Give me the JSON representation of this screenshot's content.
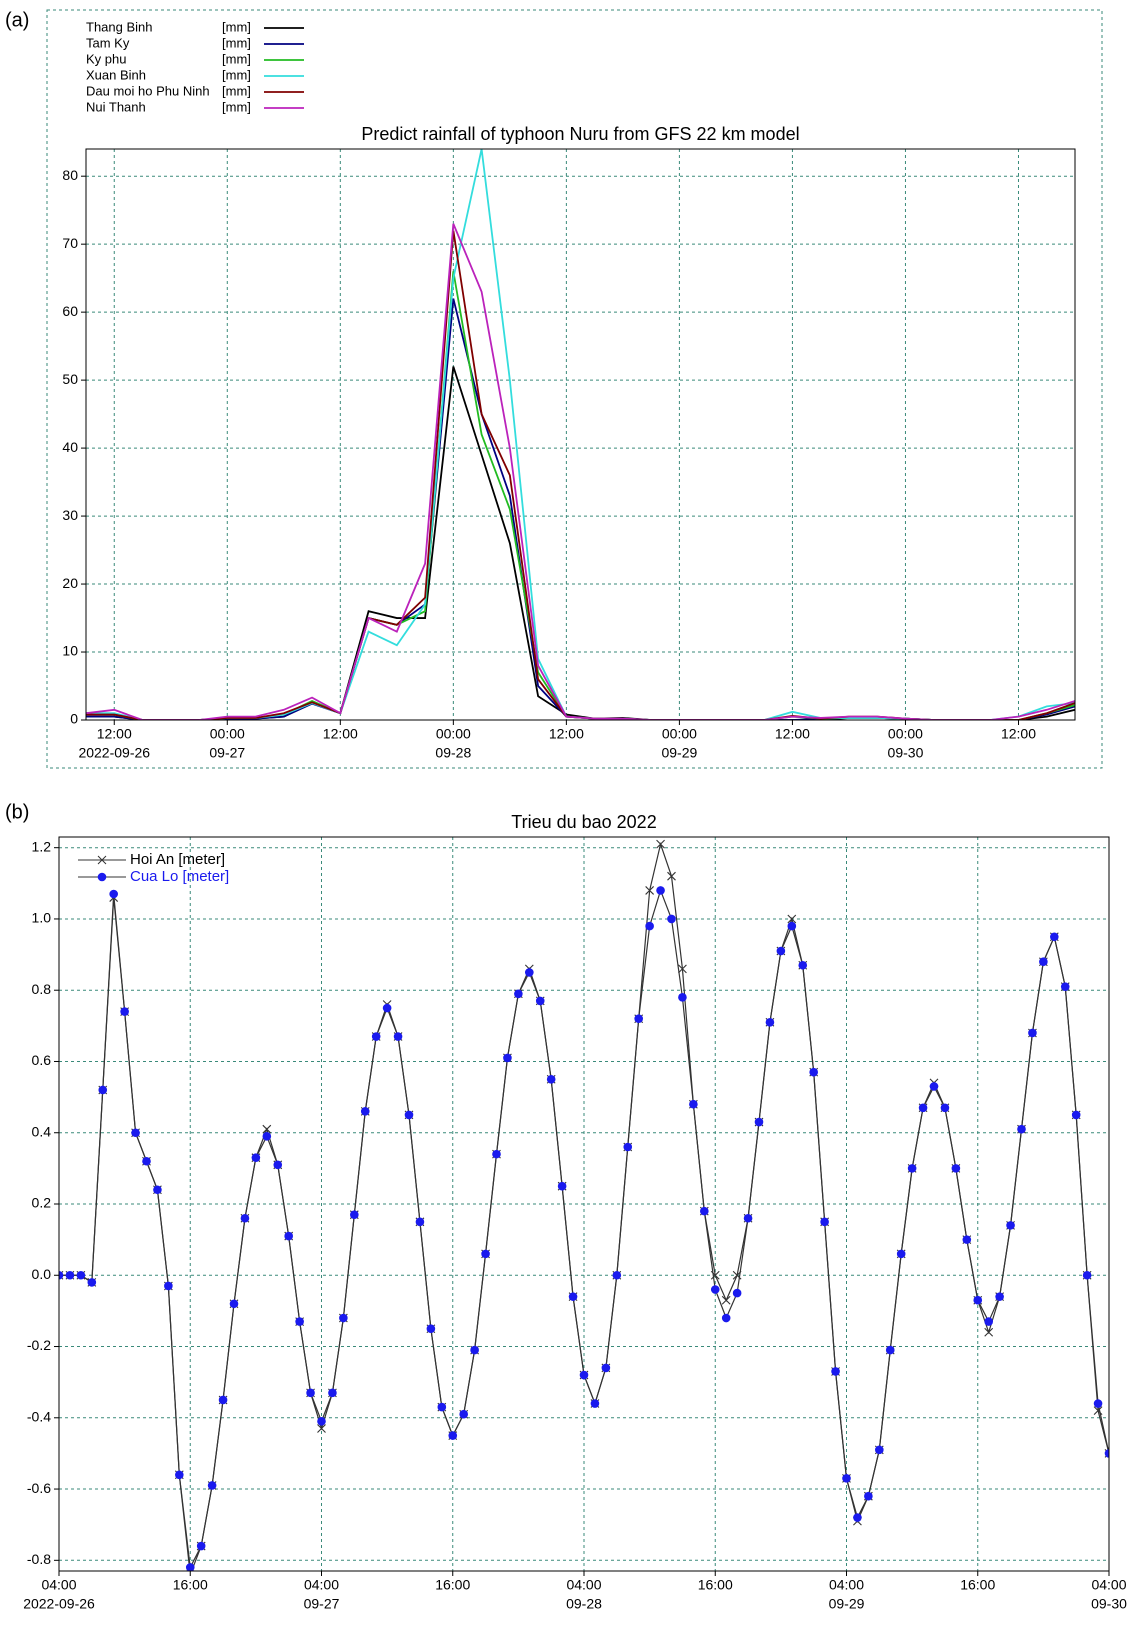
{
  "chart_data": [
    {
      "type": "line",
      "panel_label": "(a)",
      "title": "Predict rainfall of typhoon Nuru from GFS 22 km model",
      "unit": "[mm]",
      "legend": "upper left",
      "grid": true,
      "x": [
        "2022-09-26 09:00",
        "2022-09-26 12:00",
        "2022-09-26 15:00",
        "2022-09-26 18:00",
        "2022-09-26 21:00",
        "2022-09-27 00:00",
        "2022-09-27 03:00",
        "2022-09-27 06:00",
        "2022-09-27 09:00",
        "2022-09-27 12:00",
        "2022-09-27 15:00",
        "2022-09-27 18:00",
        "2022-09-27 21:00",
        "2022-09-28 00:00",
        "2022-09-28 03:00",
        "2022-09-28 06:00",
        "2022-09-28 09:00",
        "2022-09-28 12:00",
        "2022-09-28 15:00",
        "2022-09-28 18:00",
        "2022-09-28 21:00",
        "2022-09-29 00:00",
        "2022-09-29 03:00",
        "2022-09-29 06:00",
        "2022-09-29 09:00",
        "2022-09-29 12:00",
        "2022-09-29 15:00",
        "2022-09-29 18:00",
        "2022-09-29 21:00",
        "2022-09-30 00:00",
        "2022-09-30 03:00",
        "2022-09-30 06:00",
        "2022-09-30 09:00",
        "2022-09-30 12:00",
        "2022-09-30 15:00",
        "2022-09-30 18:00"
      ],
      "series": [
        {
          "name": "Thang Binh",
          "color": "#000000",
          "values": [
            0.5,
            0.5,
            0,
            0,
            0,
            0.2,
            0.2,
            0.5,
            2.5,
            1,
            16,
            15,
            15,
            52,
            39,
            26,
            3.5,
            0.8,
            0.2,
            0.3,
            0,
            0,
            0,
            0,
            0,
            0,
            0,
            0.3,
            0.3,
            0.2,
            0,
            0,
            0,
            0,
            0.5,
            1.5
          ]
        },
        {
          "name": "Tam Ky",
          "color": "#000080",
          "values": [
            0.5,
            0.5,
            0,
            0,
            0,
            0.2,
            0.2,
            0.5,
            2.4,
            1,
            15,
            14,
            17,
            62,
            45,
            33,
            5,
            0.5,
            0.2,
            0.2,
            0,
            0,
            0,
            0,
            0,
            0,
            0.2,
            0.3,
            0.3,
            0.2,
            0,
            0,
            0,
            0,
            0.8,
            2
          ]
        },
        {
          "name": "Ky phu",
          "color": "#22bb22",
          "values": [
            0.8,
            0.8,
            0,
            0,
            0,
            0.3,
            0.3,
            0.8,
            2.8,
            1,
            15,
            14,
            16,
            66,
            42,
            31,
            7,
            0.5,
            0.2,
            0.2,
            0,
            0,
            0,
            0,
            0,
            0.5,
            0.2,
            0.3,
            0.3,
            0.2,
            0,
            0,
            0,
            0,
            1,
            2.2
          ]
        },
        {
          "name": "Xuan Binh",
          "color": "#33dddd",
          "values": [
            1,
            1,
            0,
            0,
            0,
            0.3,
            0.3,
            0.8,
            2.5,
            1,
            13,
            11,
            17,
            65,
            84,
            50,
            9,
            0.5,
            0.2,
            0.2,
            0,
            0,
            0,
            0,
            0,
            1.2,
            0.3,
            0.3,
            0.3,
            0.2,
            0,
            0,
            0,
            0.5,
            2,
            2.5
          ]
        },
        {
          "name": "Dau moi ho Phu Ninh",
          "color": "#800000",
          "values": [
            0.8,
            0.8,
            0,
            0,
            0,
            0.3,
            0.3,
            1,
            2.6,
            1,
            15,
            14,
            18,
            72,
            45,
            36,
            6,
            0.5,
            0.2,
            0.2,
            0,
            0,
            0,
            0,
            0,
            0.6,
            0.2,
            0.5,
            0.5,
            0.2,
            0,
            0,
            0,
            0,
            1,
            2.5
          ]
        },
        {
          "name": "Nui Thanh",
          "color": "#bb22bb",
          "values": [
            1,
            1.5,
            0,
            0,
            0,
            0.5,
            0.5,
            1.5,
            3.3,
            1,
            15,
            13,
            23,
            73,
            63,
            40,
            8,
            0.5,
            0.2,
            0.2,
            0,
            0,
            0,
            0,
            0,
            0.5,
            0.3,
            0.5,
            0.5,
            0.2,
            0,
            0,
            0,
            0.5,
            1.5,
            2.8
          ]
        }
      ],
      "xlim": [
        "2022-09-26 09:00",
        "2022-09-30 18:00"
      ],
      "ylim": [
        0,
        84
      ],
      "xticks": [
        {
          "value": "2022-09-26 12:00",
          "label": [
            "12:00",
            "2022-09-26"
          ]
        },
        {
          "value": "2022-09-27 00:00",
          "label": [
            "00:00",
            "09-27"
          ]
        },
        {
          "value": "2022-09-27 12:00",
          "label": [
            "12:00"
          ]
        },
        {
          "value": "2022-09-28 00:00",
          "label": [
            "00:00",
            "09-28"
          ]
        },
        {
          "value": "2022-09-28 12:00",
          "label": [
            "12:00"
          ]
        },
        {
          "value": "2022-09-29 00:00",
          "label": [
            "00:00",
            "09-29"
          ]
        },
        {
          "value": "2022-09-29 12:00",
          "label": [
            "12:00"
          ]
        },
        {
          "value": "2022-09-30 00:00",
          "label": [
            "00:00",
            "09-30"
          ]
        },
        {
          "value": "2022-09-30 12:00",
          "label": [
            "12:00"
          ]
        }
      ],
      "yticks": [
        0,
        10,
        20,
        30,
        40,
        50,
        60,
        70,
        80
      ]
    },
    {
      "type": "line",
      "panel_label": "(b)",
      "title": "Trieu du bao 2022",
      "legend": "upper left",
      "grid": true,
      "x": [
        "2022-09-26 04:00",
        "2022-09-26 05:00",
        "2022-09-26 06:00",
        "2022-09-26 07:00",
        "2022-09-26 08:00",
        "2022-09-26 09:00",
        "2022-09-26 10:00",
        "2022-09-26 11:00",
        "2022-09-26 12:00",
        "2022-09-26 13:00",
        "2022-09-26 14:00",
        "2022-09-26 15:00",
        "2022-09-26 16:00",
        "2022-09-26 17:00",
        "2022-09-26 18:00",
        "2022-09-26 19:00",
        "2022-09-26 20:00",
        "2022-09-26 21:00",
        "2022-09-26 22:00",
        "2022-09-26 23:00",
        "2022-09-27 00:00",
        "2022-09-27 01:00",
        "2022-09-27 02:00",
        "2022-09-27 03:00",
        "2022-09-27 04:00",
        "2022-09-27 05:00",
        "2022-09-27 06:00",
        "2022-09-27 07:00",
        "2022-09-27 08:00",
        "2022-09-27 09:00",
        "2022-09-27 10:00",
        "2022-09-27 11:00",
        "2022-09-27 12:00",
        "2022-09-27 13:00",
        "2022-09-27 14:00",
        "2022-09-27 15:00",
        "2022-09-27 16:00",
        "2022-09-27 17:00",
        "2022-09-27 18:00",
        "2022-09-27 19:00",
        "2022-09-27 20:00",
        "2022-09-27 21:00",
        "2022-09-27 22:00",
        "2022-09-27 23:00",
        "2022-09-28 00:00",
        "2022-09-28 01:00",
        "2022-09-28 02:00",
        "2022-09-28 03:00",
        "2022-09-28 04:00",
        "2022-09-28 05:00",
        "2022-09-28 06:00",
        "2022-09-28 07:00",
        "2022-09-28 08:00",
        "2022-09-28 09:00",
        "2022-09-28 10:00",
        "2022-09-28 11:00",
        "2022-09-28 12:00",
        "2022-09-28 13:00",
        "2022-09-28 14:00",
        "2022-09-28 15:00",
        "2022-09-28 16:00",
        "2022-09-28 17:00",
        "2022-09-28 18:00",
        "2022-09-28 19:00",
        "2022-09-28 20:00",
        "2022-09-28 21:00",
        "2022-09-28 22:00",
        "2022-09-28 23:00",
        "2022-09-29 00:00",
        "2022-09-29 01:00",
        "2022-09-29 02:00",
        "2022-09-29 03:00",
        "2022-09-29 04:00",
        "2022-09-29 05:00",
        "2022-09-29 06:00",
        "2022-09-29 07:00",
        "2022-09-29 08:00",
        "2022-09-29 09:00",
        "2022-09-29 10:00",
        "2022-09-29 11:00",
        "2022-09-29 12:00",
        "2022-09-29 13:00",
        "2022-09-29 14:00",
        "2022-09-29 15:00",
        "2022-09-29 16:00",
        "2022-09-29 17:00",
        "2022-09-29 18:00",
        "2022-09-29 19:00",
        "2022-09-29 20:00",
        "2022-09-29 21:00",
        "2022-09-29 22:00",
        "2022-09-29 23:00",
        "2022-09-30 00:00",
        "2022-09-30 01:00",
        "2022-09-30 02:00",
        "2022-09-30 03:00",
        "2022-09-30 04:00"
      ],
      "series": [
        {
          "name": "Hoi An [meter]",
          "color": "#333333",
          "marker": "x",
          "marker_color": "#333333",
          "text_color": "#000000",
          "values": [
            0,
            0,
            0,
            -0.02,
            0.52,
            1.06,
            0.74,
            0.4,
            0.32,
            0.24,
            -0.03,
            -0.56,
            -0.84,
            -0.76,
            -0.59,
            -0.35,
            -0.08,
            0.16,
            0.33,
            0.41,
            0.31,
            0.11,
            -0.13,
            -0.33,
            -0.43,
            -0.33,
            -0.12,
            0.17,
            0.46,
            0.67,
            0.76,
            0.67,
            0.45,
            0.15,
            -0.15,
            -0.37,
            -0.45,
            -0.39,
            -0.21,
            0.06,
            0.34,
            0.61,
            0.79,
            0.86,
            0.77,
            0.55,
            0.25,
            -0.06,
            -0.28,
            -0.36,
            -0.26,
            0.0,
            0.36,
            0.72,
            1.08,
            1.21,
            1.12,
            0.86,
            0.48,
            0.18,
            0.0,
            -0.07,
            0.0,
            0.16,
            0.43,
            0.71,
            0.91,
            1.0,
            0.87,
            0.57,
            0.15,
            -0.27,
            -0.57,
            -0.69,
            -0.62,
            -0.49,
            -0.21,
            0.06,
            0.3,
            0.47,
            0.54,
            0.47,
            0.3,
            0.1,
            -0.07,
            -0.16,
            -0.06,
            0.14,
            0.41,
            0.68,
            0.88,
            0.95,
            0.81,
            0.45,
            0.0,
            -0.38,
            -0.5
          ]
        },
        {
          "name": "Cua Lo [meter]",
          "color": "#333333",
          "marker": "circle",
          "marker_color": "#1a1aee",
          "text_color": "#1a1aee",
          "values": [
            0,
            0,
            0,
            -0.02,
            0.52,
            1.07,
            0.74,
            0.4,
            0.32,
            0.24,
            -0.03,
            -0.56,
            -0.82,
            -0.76,
            -0.59,
            -0.35,
            -0.08,
            0.16,
            0.33,
            0.39,
            0.31,
            0.11,
            -0.13,
            -0.33,
            -0.41,
            -0.33,
            -0.12,
            0.17,
            0.46,
            0.67,
            0.75,
            0.67,
            0.45,
            0.15,
            -0.15,
            -0.37,
            -0.45,
            -0.39,
            -0.21,
            0.06,
            0.34,
            0.61,
            0.79,
            0.85,
            0.77,
            0.55,
            0.25,
            -0.06,
            -0.28,
            -0.36,
            -0.26,
            0.0,
            0.36,
            0.72,
            0.98,
            1.08,
            1.0,
            0.78,
            0.48,
            0.18,
            -0.04,
            -0.12,
            -0.05,
            0.16,
            0.43,
            0.71,
            0.91,
            0.98,
            0.87,
            0.57,
            0.15,
            -0.27,
            -0.57,
            -0.68,
            -0.62,
            -0.49,
            -0.21,
            0.06,
            0.3,
            0.47,
            0.53,
            0.47,
            0.3,
            0.1,
            -0.07,
            -0.13,
            -0.06,
            0.14,
            0.41,
            0.68,
            0.88,
            0.95,
            0.81,
            0.45,
            0.0,
            -0.36,
            -0.5
          ]
        }
      ],
      "xlim": [
        "2022-09-26 04:00",
        "2022-09-30 04:00"
      ],
      "ylim": [
        -0.83,
        1.23
      ],
      "xticks": [
        {
          "value": "2022-09-26 04:00",
          "label": [
            "04:00",
            "2022-09-26"
          ]
        },
        {
          "value": "2022-09-26 16:00",
          "label": [
            "16:00"
          ]
        },
        {
          "value": "2022-09-27 04:00",
          "label": [
            "04:00",
            "09-27"
          ]
        },
        {
          "value": "2022-09-27 16:00",
          "label": [
            "16:00"
          ]
        },
        {
          "value": "2022-09-28 04:00",
          "label": [
            "04:00",
            "09-28"
          ]
        },
        {
          "value": "2022-09-28 16:00",
          "label": [
            "16:00"
          ]
        },
        {
          "value": "2022-09-29 04:00",
          "label": [
            "04:00",
            "09-29"
          ]
        },
        {
          "value": "2022-09-29 16:00",
          "label": [
            "16:00"
          ]
        },
        {
          "value": "2022-09-30 04:00",
          "label": [
            "04:00",
            "09-30"
          ]
        }
      ],
      "yticks": [
        1.2,
        {
          "value": 1,
          "label": "1.0"
        },
        0.8,
        0.6,
        0.4,
        0.2,
        {
          "value": 0,
          "label": "0.0"
        },
        -0.2,
        -0.4,
        -0.6,
        -0.8
      ]
    }
  ]
}
